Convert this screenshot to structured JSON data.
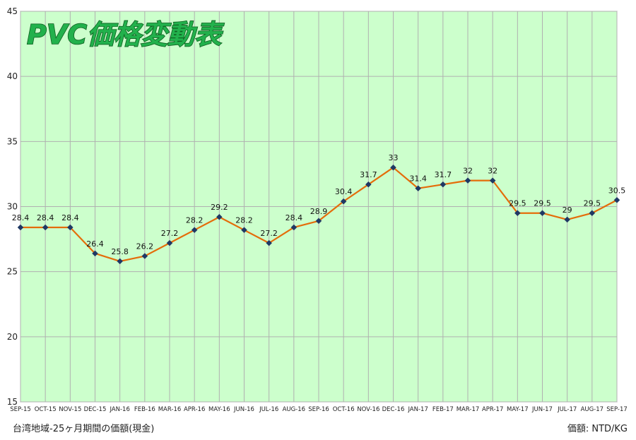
{
  "chart_data": {
    "type": "line",
    "title": "PVC価格変動表",
    "categories": [
      "SEP-15",
      "OCT-15",
      "NOV-15",
      "DEC-15",
      "JAN-16",
      "FEB-16",
      "MAR-16",
      "APR-16",
      "MAY-16",
      "JUN-16",
      "JUL-16",
      "AUG-16",
      "SEP-16",
      "OCT-16",
      "NOV-16",
      "DEC-16",
      "JAN-17",
      "FEB-17",
      "MAR-17",
      "APR-17",
      "MAY-17",
      "JUN-17",
      "JUL-17",
      "AUG-17",
      "SEP-17"
    ],
    "values": [
      28.4,
      28.4,
      28.4,
      26.4,
      25.8,
      26.2,
      27.2,
      28.2,
      29.2,
      28.2,
      27.2,
      28.4,
      28.9,
      30.4,
      31.7,
      33,
      31.4,
      31.7,
      32,
      32,
      29.5,
      29.5,
      29,
      29.5,
      30.5
    ],
    "data_labels": [
      "28.4",
      "28.4",
      "28.4",
      "26.4",
      "25.8",
      "26.2",
      "27.2",
      "28.2",
      "29.2",
      "28.2",
      "27.2",
      "28.4",
      "28.9",
      "30.4",
      "31.7",
      "33",
      "31.4",
      "31.7",
      "32",
      "32",
      "29.5",
      "29.5",
      "29",
      "29.5",
      "30.5"
    ],
    "ylim": [
      15,
      45
    ],
    "yticks": [
      15,
      20,
      25,
      30,
      35,
      40,
      45
    ],
    "xlabel": "",
    "ylabel": "",
    "grid": true,
    "legend": "none",
    "colors": {
      "plot_background": "#ccffcc",
      "line": "#e46c0a",
      "marker": "#1f3864",
      "title_fill": "#22b14c",
      "title_outline": "#0e5e1f",
      "gridline": "#b0b0b0"
    }
  },
  "footer": {
    "caption_left": "台湾地域-25ヶ月期間の価額(現金)",
    "caption_right": "価額: NTD/KG"
  }
}
